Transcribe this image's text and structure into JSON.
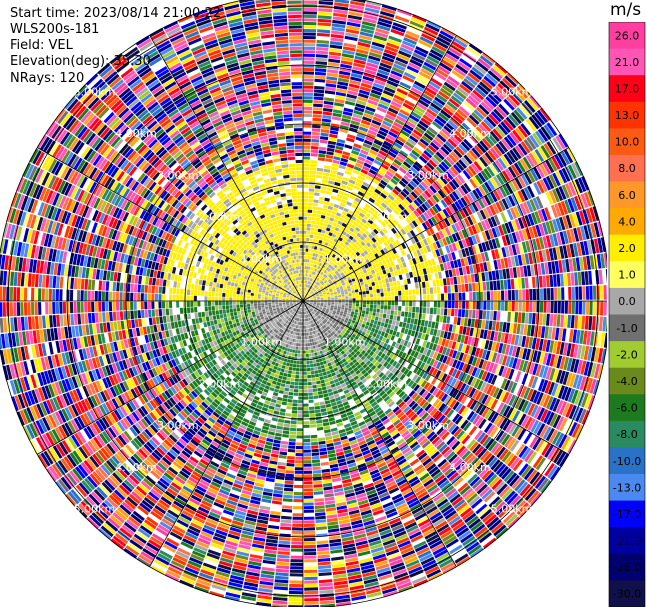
{
  "header": {
    "start_time": "Start time: 2023/08/14 21:00:22",
    "site": "WLS200s-181",
    "field": "Field: VEL",
    "elevation": "Elevation(deg): 35.30",
    "nrays": "NRays: 120"
  },
  "colorbar": {
    "unit": "m/s",
    "ticks": [
      "26.0",
      "21.0",
      "17.0",
      "13.0",
      "10.0",
      "8.0",
      "6.0",
      "4.0",
      "2.0",
      "1.0",
      "0.0",
      "-1.0",
      "-2.0",
      "-4.0",
      "-6.0",
      "-8.0",
      "-10.0",
      "-13.0",
      "-17.0",
      "-21.0",
      "-26.0",
      "-30.0"
    ],
    "colors": [
      "#ff3fa0",
      "#ff55b4",
      "#ff0018",
      "#ff3300",
      "#ff5a14",
      "#ff7050",
      "#ff9828",
      "#ffaa00",
      "#ffee00",
      "#ffff60",
      "#a8a8a8",
      "#707070",
      "#a0cc30",
      "#6a8a1c",
      "#1e7a1e",
      "#2a8a60",
      "#2a72c8",
      "#4a8af0",
      "#0000ff",
      "#0000a0",
      "#000070",
      "#10104a"
    ]
  },
  "chart_data": {
    "type": "heatmap",
    "title": "",
    "field": "VEL",
    "nrays": 120,
    "range_ring_labels": [
      "1.00km",
      "2.00km",
      "3.00km",
      "4.00km",
      "5.00km"
    ],
    "range_rings_km": [
      1,
      2,
      3,
      4,
      5
    ],
    "max_range_km": 5.2,
    "color_scale": {
      "unit": "m/s",
      "bounds": [
        -30.0,
        -26.0,
        -21.0,
        -17.0,
        -13.0,
        -10.0,
        -8.0,
        -6.0,
        -4.0,
        -2.0,
        -1.0,
        0.0,
        1.0,
        2.0,
        4.0,
        6.0,
        8.0,
        10.0,
        13.0,
        17.0,
        21.0,
        26.0
      ]
    },
    "sectors": [
      {
        "azimuth_deg": [
          270,
          90
        ],
        "range_km": [
          0.4,
          2.4
        ],
        "dominant_value_ms": 2.0
      },
      {
        "azimuth_deg": [
          90,
          270
        ],
        "range_km": [
          0.4,
          2.4
        ],
        "dominant_value_ms": -6.0
      },
      {
        "azimuth_deg": [
          0,
          360
        ],
        "range_km": [
          0,
          0.8
        ],
        "dominant_value_ms": 0.0
      },
      {
        "azimuth_deg": [
          0,
          360
        ],
        "range_km": [
          2.4,
          5.2
        ],
        "dominant_value_ms": "noise"
      }
    ]
  }
}
